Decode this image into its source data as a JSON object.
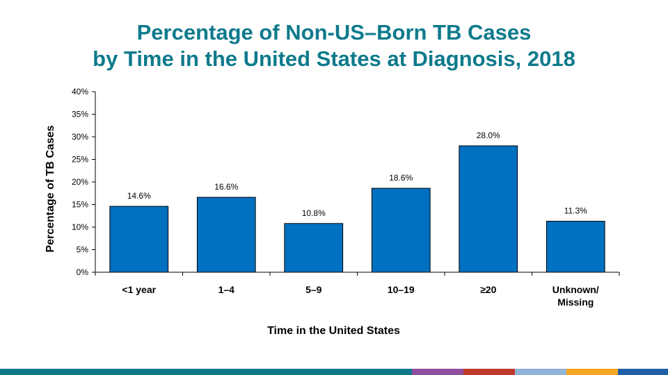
{
  "title": {
    "line1": "Percentage of Non-US–Born TB Cases",
    "line2": "by Time in the United States at Diagnosis, 2018"
  },
  "chart_data": {
    "type": "bar",
    "title": "Percentage of Non-US–Born TB Cases by Time in the United States at Diagnosis, 2018",
    "xlabel": "Time in the United States",
    "ylabel": "Percentage of TB Cases",
    "categories": [
      [
        "<1 year"
      ],
      [
        "1–4"
      ],
      [
        "5–9"
      ],
      [
        "10–19"
      ],
      [
        "≥20"
      ],
      [
        "Unknown/",
        "Missing"
      ]
    ],
    "values": [
      14.6,
      16.6,
      10.8,
      18.6,
      28.0,
      11.3
    ],
    "data_labels": [
      "14.6%",
      "16.6%",
      "10.8%",
      "18.6%",
      "28.0%",
      "11.3%"
    ],
    "ylim": [
      0,
      40
    ],
    "yticks": [
      0,
      5,
      10,
      15,
      20,
      25,
      30,
      35,
      40
    ],
    "ytick_labels": [
      "0%",
      "5%",
      "10%",
      "15%",
      "20%",
      "25%",
      "30%",
      "35%",
      "40%"
    ],
    "bar_color": "#0070c0",
    "grid": false,
    "legend": "none"
  },
  "footer_colors": [
    "#0e7a8c",
    "#8e4f9e",
    "#c0392b",
    "#8fb3d9",
    "#f5a623",
    "#1f5fa8"
  ]
}
